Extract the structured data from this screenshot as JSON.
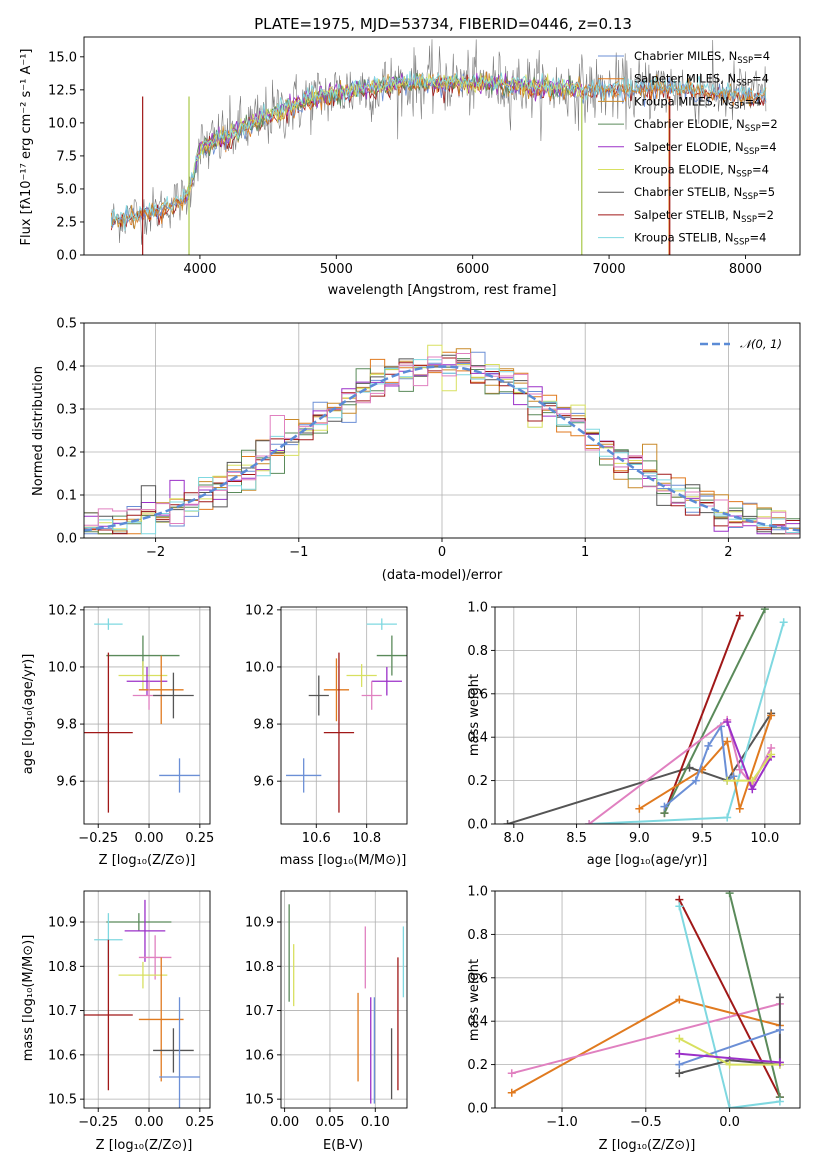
{
  "colors": {
    "Chabrier MILES": "#6b8fd6",
    "Salpeter MILES": "#e07a1f",
    "Kroupa MILES": "#c98a2a",
    "Chabrier ELODIE": "#5a8a5a",
    "Salpeter ELODIE": "#9b30c8",
    "Kroupa ELODIE": "#d8e060",
    "Chabrier STELIB": "#555555",
    "Salpeter STELIB": "#a01818",
    "Kroupa STELIB": "#7fd8e0",
    "Pink": "#e080c0",
    "Olive": "#a8c848",
    "Normal": "#5b8bd6"
  },
  "chart_data": [
    {
      "id": "spectrum",
      "type": "line",
      "title": "PLATE=1975, MJD=53734, FIBERID=0446, z=0.13",
      "xlabel": "wavelength [Angstrom, rest frame]",
      "ylabel": "Flux [fλ10⁻¹⁷ erg cm⁻² s⁻¹ A⁻¹]",
      "xlim": [
        3150,
        8400
      ],
      "ylim": [
        0,
        16.5
      ],
      "xticks": [
        "4000",
        "5000",
        "6000",
        "7000",
        "8000"
      ],
      "yticks": [
        "0.0",
        "2.5",
        "5.0",
        "7.5",
        "10.0",
        "12.5",
        "15.0"
      ],
      "legend_pos": "right",
      "legend": [
        {
          "name": "Chabrier MILES",
          "sub": "SSP",
          "n": "=4"
        },
        {
          "name": "Salpeter MILES",
          "sub": "SSP",
          "n": "=4"
        },
        {
          "name": "Kroupa MILES",
          "sub": "SSP",
          "n": "=4"
        },
        {
          "name": "Chabrier ELODIE",
          "sub": "SSP",
          "n": "=2"
        },
        {
          "name": "Salpeter ELODIE",
          "sub": "SSP",
          "n": "=4"
        },
        {
          "name": "Kroupa ELODIE",
          "sub": "SSP",
          "n": "=4"
        },
        {
          "name": "Chabrier STELIB",
          "sub": "SSP",
          "n": "=5"
        },
        {
          "name": "Salpeter STELIB",
          "sub": "SSP",
          "n": "=2"
        },
        {
          "name": "Kroupa STELIB",
          "sub": "SSP",
          "n": "=4"
        }
      ],
      "continuum": [
        [
          3350,
          2.6
        ],
        [
          3500,
          3.0
        ],
        [
          3700,
          3.4
        ],
        [
          3900,
          4.4
        ],
        [
          3950,
          6.0
        ],
        [
          4000,
          8.0
        ],
        [
          4200,
          9.0
        ],
        [
          4400,
          10.0
        ],
        [
          4600,
          11.0
        ],
        [
          4800,
          11.8
        ],
        [
          5000,
          12.3
        ],
        [
          5200,
          12.6
        ],
        [
          5500,
          13.0
        ],
        [
          5800,
          13.1
        ],
        [
          6000,
          13.0
        ],
        [
          6300,
          12.9
        ],
        [
          6600,
          12.6
        ],
        [
          7000,
          12.5
        ],
        [
          7400,
          12.7
        ],
        [
          7800,
          12.3
        ],
        [
          8150,
          12.0
        ]
      ]
    },
    {
      "id": "residuals",
      "type": "histogram",
      "xlabel": "(data-model)/error",
      "ylabel": "Normed distribution",
      "xlim": [
        -2.5,
        2.5
      ],
      "ylim": [
        0,
        0.5
      ],
      "xticks": [
        "−2",
        "−1",
        "0",
        "1",
        "2"
      ],
      "yticks": [
        "0.0",
        "0.1",
        "0.2",
        "0.3",
        "0.4",
        "0.5"
      ],
      "legend": "𝒩(0, 1)",
      "legend_pos": "top-right",
      "bin_width": 0.1
    },
    {
      "id": "age-vs-Z",
      "type": "scatter",
      "xlabel": "Z [log₁₀(Z/Z⊙)]",
      "ylabel": "age  [log₁₀(age/yr)]",
      "xlim": [
        -0.32,
        0.3
      ],
      "ylim": [
        9.45,
        10.21
      ],
      "xticks": [
        "−0.25",
        "0.00",
        "0.25"
      ],
      "yticks": [
        "9.6",
        "9.8",
        "10.0",
        "10.2"
      ],
      "points": [
        {
          "series": "Kroupa STELIB",
          "x": -0.2,
          "y": 10.15,
          "xerr": 0.07,
          "yerr": 0.02
        },
        {
          "series": "Chabrier ELODIE",
          "x": -0.03,
          "y": 10.04,
          "xerr": 0.18,
          "yerr": 0.07
        },
        {
          "series": "Kroupa ELODIE",
          "x": -0.03,
          "y": 9.97,
          "xerr": 0.12,
          "yerr": 0.05
        },
        {
          "series": "Salpeter ELODIE",
          "x": -0.01,
          "y": 9.95,
          "xerr": 0.1,
          "yerr": 0.05
        },
        {
          "series": "Salpeter MILES",
          "x": 0.06,
          "y": 9.92,
          "xerr": 0.11,
          "yerr": 0.12
        },
        {
          "series": "Pink",
          "x": 0.0,
          "y": 9.9,
          "xerr": 0.08,
          "yerr": 0.05
        },
        {
          "series": "Chabrier STELIB",
          "x": 0.12,
          "y": 9.9,
          "xerr": 0.1,
          "yerr": 0.08
        },
        {
          "series": "Salpeter STELIB",
          "x": -0.2,
          "y": 9.77,
          "xerr": 0.12,
          "yerr": 0.28
        },
        {
          "series": "Chabrier MILES",
          "x": 0.15,
          "y": 9.62,
          "xerr": 0.1,
          "yerr": 0.06
        }
      ]
    },
    {
      "id": "age-vs-mass",
      "type": "scatter",
      "xlabel": "mass [log₁₀(M/M⊙)]",
      "ylabel": "",
      "xlim": [
        10.46,
        10.96
      ],
      "ylim": [
        9.45,
        10.21
      ],
      "xticks": [
        "10.6",
        "10.8"
      ],
      "yticks": [
        "9.6",
        "9.8",
        "10.0",
        "10.2"
      ],
      "points": [
        {
          "series": "Kroupa STELIB",
          "x": 10.86,
          "y": 10.15,
          "xerr": 0.06,
          "yerr": 0.02
        },
        {
          "series": "Chabrier ELODIE",
          "x": 10.9,
          "y": 10.04,
          "xerr": 0.06,
          "yerr": 0.07
        },
        {
          "series": "Kroupa ELODIE",
          "x": 10.78,
          "y": 9.97,
          "xerr": 0.06,
          "yerr": 0.04
        },
        {
          "series": "Salpeter ELODIE",
          "x": 10.88,
          "y": 9.95,
          "xerr": 0.06,
          "yerr": 0.05
        },
        {
          "series": "Salpeter MILES",
          "x": 10.68,
          "y": 9.92,
          "xerr": 0.05,
          "yerr": 0.11
        },
        {
          "series": "Pink",
          "x": 10.82,
          "y": 9.9,
          "xerr": 0.04,
          "yerr": 0.05
        },
        {
          "series": "Chabrier STELIB",
          "x": 10.61,
          "y": 9.9,
          "xerr": 0.04,
          "yerr": 0.07
        },
        {
          "series": "Salpeter STELIB",
          "x": 10.69,
          "y": 9.77,
          "xerr": 0.06,
          "yerr": 0.28
        },
        {
          "series": "Chabrier MILES",
          "x": 10.55,
          "y": 9.62,
          "xerr": 0.07,
          "yerr": 0.06
        }
      ]
    },
    {
      "id": "weight-vs-age",
      "type": "line",
      "xlabel": "age  [log₁₀(age/yr)]",
      "ylabel": "mass weight",
      "xlim": [
        7.85,
        10.28
      ],
      "ylim": [
        0,
        1.0
      ],
      "xticks": [
        "8.0",
        "8.5",
        "9.0",
        "9.5",
        "10.0"
      ],
      "yticks": [
        "0.0",
        "0.2",
        "0.4",
        "0.6",
        "0.8",
        "1.0"
      ],
      "series": [
        {
          "name": "Chabrier STELIB",
          "x": [
            7.95,
            9.4,
            9.7,
            10.05
          ],
          "y": [
            0.0,
            0.26,
            0.2,
            0.51
          ]
        },
        {
          "name": "Salpeter STELIB",
          "x": [
            9.2,
            9.8
          ],
          "y": [
            0.05,
            0.96
          ]
        },
        {
          "name": "Chabrier ELODIE",
          "x": [
            9.2,
            10.0
          ],
          "y": [
            0.05,
            0.99
          ]
        },
        {
          "name": "Kroupa STELIB",
          "x": [
            8.6,
            9.7,
            10.15
          ],
          "y": [
            0.0,
            0.03,
            0.93
          ]
        },
        {
          "name": "Salpeter MILES",
          "x": [
            9.0,
            9.5,
            9.7,
            9.8,
            10.05
          ],
          "y": [
            0.07,
            0.25,
            0.38,
            0.07,
            0.5
          ]
        },
        {
          "name": "Chabrier MILES",
          "x": [
            9.2,
            9.45,
            9.55,
            9.65,
            9.7,
            9.75
          ],
          "y": [
            0.08,
            0.2,
            0.36,
            0.45,
            0.2,
            0.22
          ]
        },
        {
          "name": "Pink",
          "x": [
            8.6,
            9.7,
            9.8,
            9.9,
            10.05
          ],
          "y": [
            0.0,
            0.48,
            0.25,
            0.18,
            0.35
          ]
        },
        {
          "name": "Salpeter ELODIE",
          "x": [
            9.7,
            9.9,
            10.05
          ],
          "y": [
            0.47,
            0.16,
            0.31
          ]
        },
        {
          "name": "Kroupa ELODIE",
          "x": [
            9.7,
            9.9,
            10.05
          ],
          "y": [
            0.2,
            0.2,
            0.32
          ]
        }
      ]
    },
    {
      "id": "mass-vs-Z",
      "type": "scatter",
      "xlabel": "Z [log₁₀(Z/Z⊙)]",
      "ylabel": "mass [log₁₀(M/M⊙)]",
      "xlim": [
        -0.32,
        0.3
      ],
      "ylim": [
        10.48,
        10.97
      ],
      "xticks": [
        "−0.25",
        "0.00",
        "0.25"
      ],
      "yticks": [
        "10.5",
        "10.6",
        "10.7",
        "10.8",
        "10.9"
      ],
      "points": [
        {
          "series": "Chabrier ELODIE",
          "x": -0.05,
          "y": 10.9,
          "xerr": 0.16,
          "yerr": 0.02
        },
        {
          "series": "Salpeter ELODIE",
          "x": -0.02,
          "y": 10.88,
          "xerr": 0.1,
          "yerr": 0.07
        },
        {
          "series": "Kroupa STELIB",
          "x": -0.2,
          "y": 10.86,
          "xerr": 0.07,
          "yerr": 0.06
        },
        {
          "series": "Pink",
          "x": 0.03,
          "y": 10.82,
          "xerr": 0.08,
          "yerr": 0.05
        },
        {
          "series": "Kroupa ELODIE",
          "x": -0.03,
          "y": 10.78,
          "xerr": 0.12,
          "yerr": 0.03
        },
        {
          "series": "Salpeter STELIB",
          "x": -0.2,
          "y": 10.69,
          "xerr": 0.12,
          "yerr": 0.17
        },
        {
          "series": "Salpeter MILES",
          "x": 0.06,
          "y": 10.68,
          "xerr": 0.11,
          "yerr": 0.14
        },
        {
          "series": "Chabrier STELIB",
          "x": 0.12,
          "y": 10.61,
          "xerr": 0.1,
          "yerr": 0.05
        },
        {
          "series": "Chabrier MILES",
          "x": 0.15,
          "y": 10.55,
          "xerr": 0.1,
          "yerr": 0.18
        }
      ]
    },
    {
      "id": "mass-vs-EBV",
      "type": "errorbar",
      "xlabel": "E(B-V)",
      "ylabel": "",
      "xlim": [
        -0.004,
        0.135
      ],
      "ylim": [
        10.48,
        10.97
      ],
      "xticks": [
        "0.00",
        "0.05",
        "0.10"
      ],
      "yticks": [
        "10.5",
        "10.6",
        "10.7",
        "10.8",
        "10.9"
      ],
      "points": [
        {
          "series": "Chabrier ELODIE",
          "x": 0.005,
          "y": 10.83,
          "yerr": 0.11
        },
        {
          "series": "Kroupa ELODIE",
          "x": 0.01,
          "y": 10.78,
          "yerr": 0.07
        },
        {
          "series": "Salpeter MILES",
          "x": 0.081,
          "y": 10.64,
          "yerr": 0.1
        },
        {
          "series": "Pink",
          "x": 0.089,
          "y": 10.82,
          "yerr": 0.07
        },
        {
          "series": "Chabrier MILES",
          "x": 0.099,
          "y": 10.61,
          "yerr": 0.12
        },
        {
          "series": "Salpeter ELODIE",
          "x": 0.095,
          "y": 10.61,
          "yerr": 0.12
        },
        {
          "series": "Chabrier STELIB",
          "x": 0.118,
          "y": 10.58,
          "yerr": 0.08
        },
        {
          "series": "Salpeter STELIB",
          "x": 0.125,
          "y": 10.67,
          "yerr": 0.15
        },
        {
          "series": "Kroupa STELIB",
          "x": 0.131,
          "y": 10.81,
          "yerr": 0.08
        }
      ]
    },
    {
      "id": "weight-vs-Z",
      "type": "line",
      "xlabel": "Z [log₁₀(Z/Z⊙)]",
      "ylabel": "mass weight",
      "xlim": [
        -1.4,
        0.42
      ],
      "ylim": [
        0,
        1.0
      ],
      "xticks": [
        "−1.0",
        "−0.5",
        "0.0"
      ],
      "yticks": [
        "0.0",
        "0.2",
        "0.4",
        "0.6",
        "0.8",
        "1.0"
      ],
      "series": [
        {
          "name": "Salpeter MILES",
          "x": [
            -1.3,
            -0.3,
            0.3
          ],
          "y": [
            0.07,
            0.5,
            0.38
          ]
        },
        {
          "name": "Pink",
          "x": [
            -1.3,
            0.3
          ],
          "y": [
            0.16,
            0.48
          ]
        },
        {
          "name": "Salpeter STELIB",
          "x": [
            -0.3,
            0.3
          ],
          "y": [
            0.96,
            0.05
          ]
        },
        {
          "name": "Chabrier ELODIE",
          "x": [
            0.0,
            0.3
          ],
          "y": [
            0.99,
            0.05
          ]
        },
        {
          "name": "Kroupa STELIB",
          "x": [
            -0.3,
            0.0,
            0.3
          ],
          "y": [
            0.93,
            0.0,
            0.03
          ]
        },
        {
          "name": "Chabrier STELIB",
          "x": [
            -0.3,
            0.0,
            0.3,
            0.3
          ],
          "y": [
            0.16,
            0.22,
            0.2,
            0.51
          ]
        },
        {
          "name": "Chabrier MILES",
          "x": [
            -0.3,
            0.3
          ],
          "y": [
            0.2,
            0.36
          ]
        },
        {
          "name": "Kroupa ELODIE",
          "x": [
            -0.3,
            0.0,
            0.3
          ],
          "y": [
            0.32,
            0.2,
            0.2
          ]
        },
        {
          "name": "Salpeter ELODIE",
          "x": [
            -0.3,
            0.3
          ],
          "y": [
            0.25,
            0.21
          ]
        }
      ]
    }
  ]
}
